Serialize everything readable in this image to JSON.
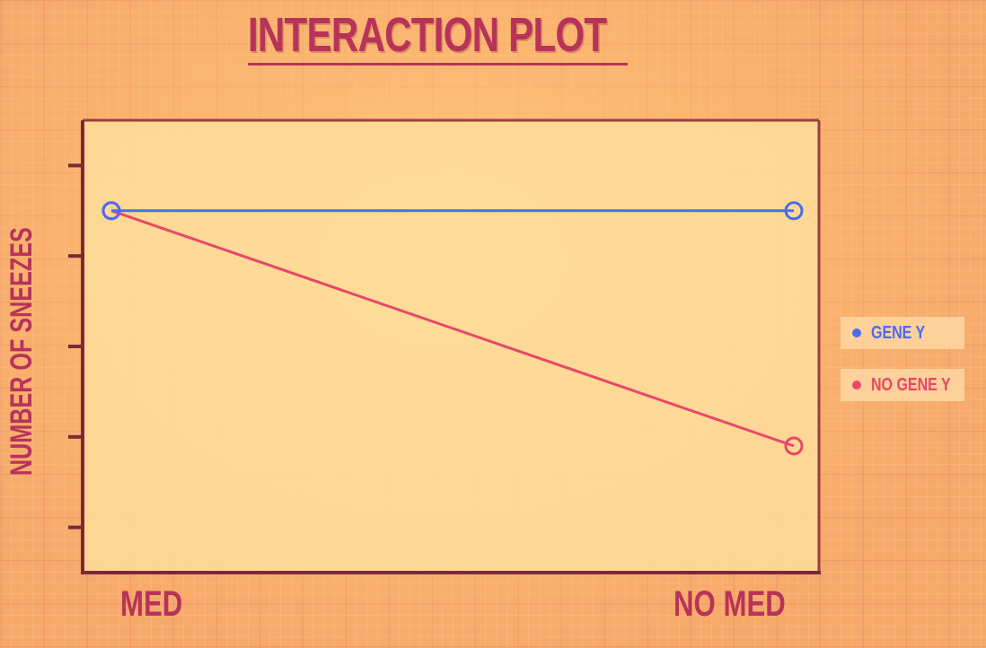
{
  "chart_data": {
    "type": "line",
    "title": "INTERACTION PLOT",
    "xlabel": "",
    "ylabel": "NUMBER OF SNEEZES",
    "categories": [
      "MED",
      "NO MED"
    ],
    "ylim": [
      0,
      5
    ],
    "y_ticks": [
      0.5,
      1.5,
      2.5,
      3.5,
      4.5
    ],
    "tick_labels_shown": false,
    "grid": false,
    "legend_position": "right",
    "series": [
      {
        "name": "GENE Y",
        "values": [
          4.0,
          4.0
        ],
        "color": "#4a6cf0"
      },
      {
        "name": "NO GENE Y",
        "values": [
          4.0,
          1.4
        ],
        "color": "#e8476a"
      }
    ]
  },
  "colors": {
    "accent": "#b8325a",
    "axis": "#7a2a34",
    "plot_background": "#ffdf9e"
  }
}
